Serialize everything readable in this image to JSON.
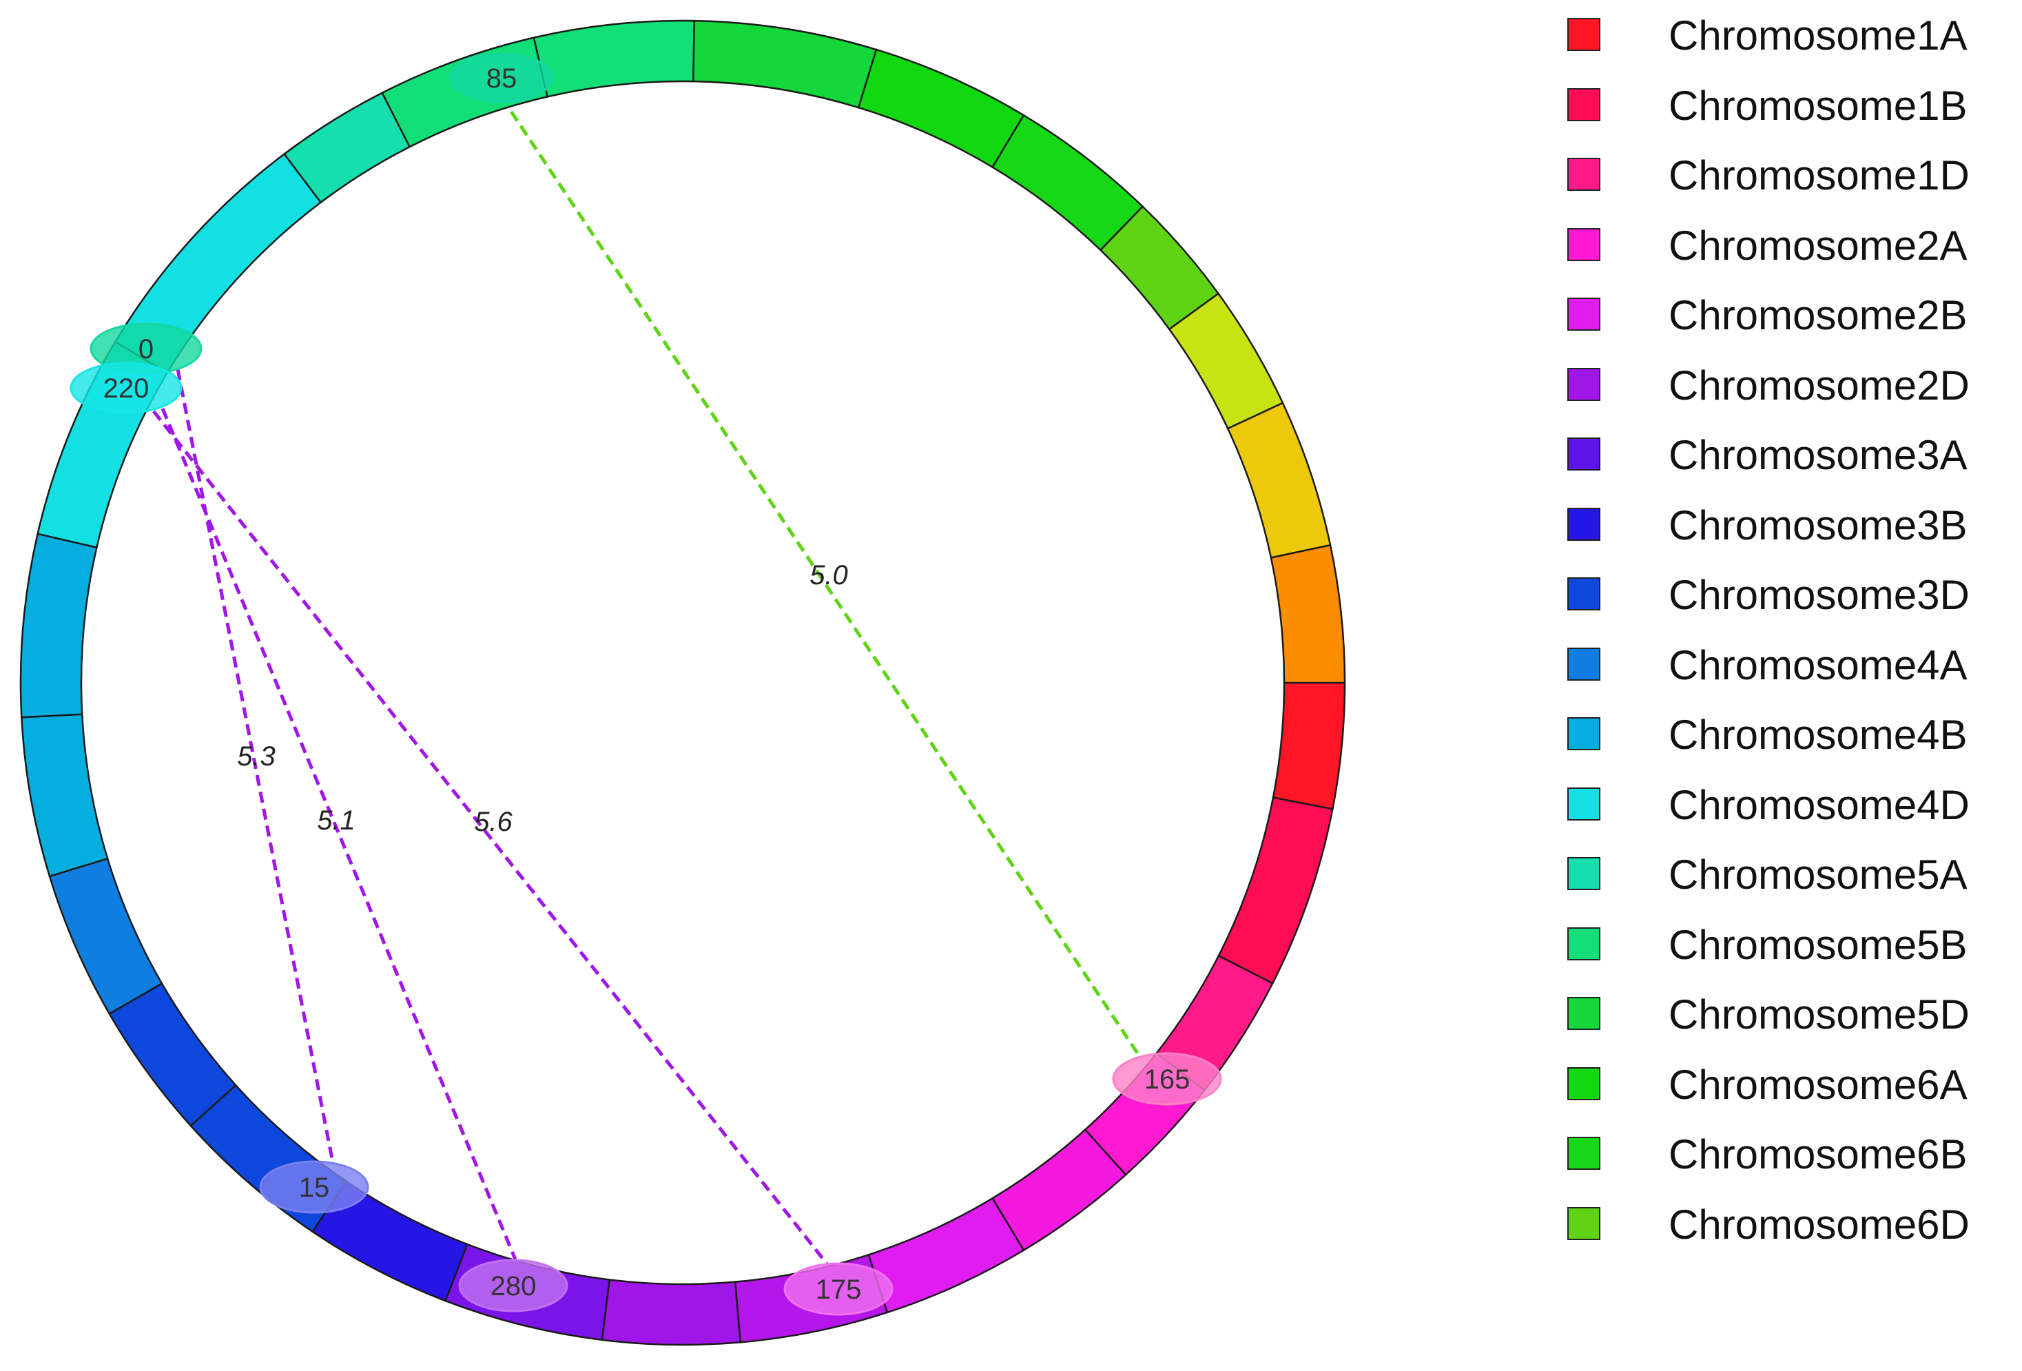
{
  "chart_data": {
    "type": "circos",
    "chromosomes": [
      {
        "name": "Chromosome1A",
        "color": "#ff1525"
      },
      {
        "name": "Chromosome1B",
        "color": "#ff0c55"
      },
      {
        "name": "Chromosome1D",
        "color": "#ff1a8a"
      },
      {
        "name": "Chromosome2A",
        "color": "#ff19d0"
      },
      {
        "name": "Chromosome2B",
        "color": "#e01cf0"
      },
      {
        "name": "Chromosome2D",
        "color": "#a015e8"
      },
      {
        "name": "Chromosome3A",
        "color": "#5e14e8"
      },
      {
        "name": "Chromosome3B",
        "color": "#2516e6"
      },
      {
        "name": "Chromosome3D",
        "color": "#0d47dc"
      },
      {
        "name": "Chromosome4A",
        "color": "#0f7ee0"
      },
      {
        "name": "Chromosome4B",
        "color": "#06aee0"
      },
      {
        "name": "Chromosome4D",
        "color": "#12e0e2"
      },
      {
        "name": "Chromosome5A",
        "color": "#16dfae"
      },
      {
        "name": "Chromosome5B",
        "color": "#12df78"
      },
      {
        "name": "Chromosome5D",
        "color": "#14d83a"
      },
      {
        "name": "Chromosome6A",
        "color": "#12d812"
      },
      {
        "name": "Chromosome6B",
        "color": "#16d816"
      },
      {
        "name": "Chromosome6D",
        "color": "#5ed414"
      }
    ],
    "ring_segments": [
      {
        "color": "#ff1525"
      },
      {
        "color": "#ff0c55"
      },
      {
        "color": "#ff1a8a"
      },
      {
        "color": "#ff19d0"
      },
      {
        "color": "#ff19d0"
      },
      {
        "color": "#e01cf0"
      },
      {
        "color": "#a015e8"
      },
      {
        "color": "#5e14e8"
      },
      {
        "color": "#2516e6"
      },
      {
        "color": "#0d47dc"
      },
      {
        "color": "#0f7ee0"
      },
      {
        "color": "#06aee0"
      },
      {
        "color": "#12e0e2"
      },
      {
        "color": "#16dfae"
      },
      {
        "color": "#12df78"
      },
      {
        "color": "#14d83a"
      },
      {
        "color": "#12d812"
      },
      {
        "color": "#16d816"
      },
      {
        "color": "#5ed414"
      },
      {
        "color": "#c8e214"
      },
      {
        "color": "#ecc90a"
      },
      {
        "color": "#fc8c00"
      }
    ],
    "markers": [
      {
        "label": "85",
        "color": "#14d8a0"
      },
      {
        "label": "0",
        "color": "#14d8a0"
      },
      {
        "label": "220",
        "color": "#16e6e6"
      },
      {
        "label": "15",
        "color": "#7a80f0"
      },
      {
        "label": "280",
        "color": "#c070f0"
      },
      {
        "label": "175",
        "color": "#f070f0"
      },
      {
        "label": "165",
        "color": "#ff80c8"
      }
    ],
    "links": [
      {
        "from": "85",
        "to": "165",
        "value": "5.0",
        "color": "#5ed414"
      },
      {
        "from": "220",
        "to": "15",
        "value": "5.3",
        "color": "#a015e8"
      },
      {
        "from": "220",
        "to": "280",
        "value": "5.1",
        "color": "#a015e8"
      },
      {
        "from": "220",
        "to": "175",
        "value": "5.6",
        "color": "#a015e8"
      }
    ]
  }
}
